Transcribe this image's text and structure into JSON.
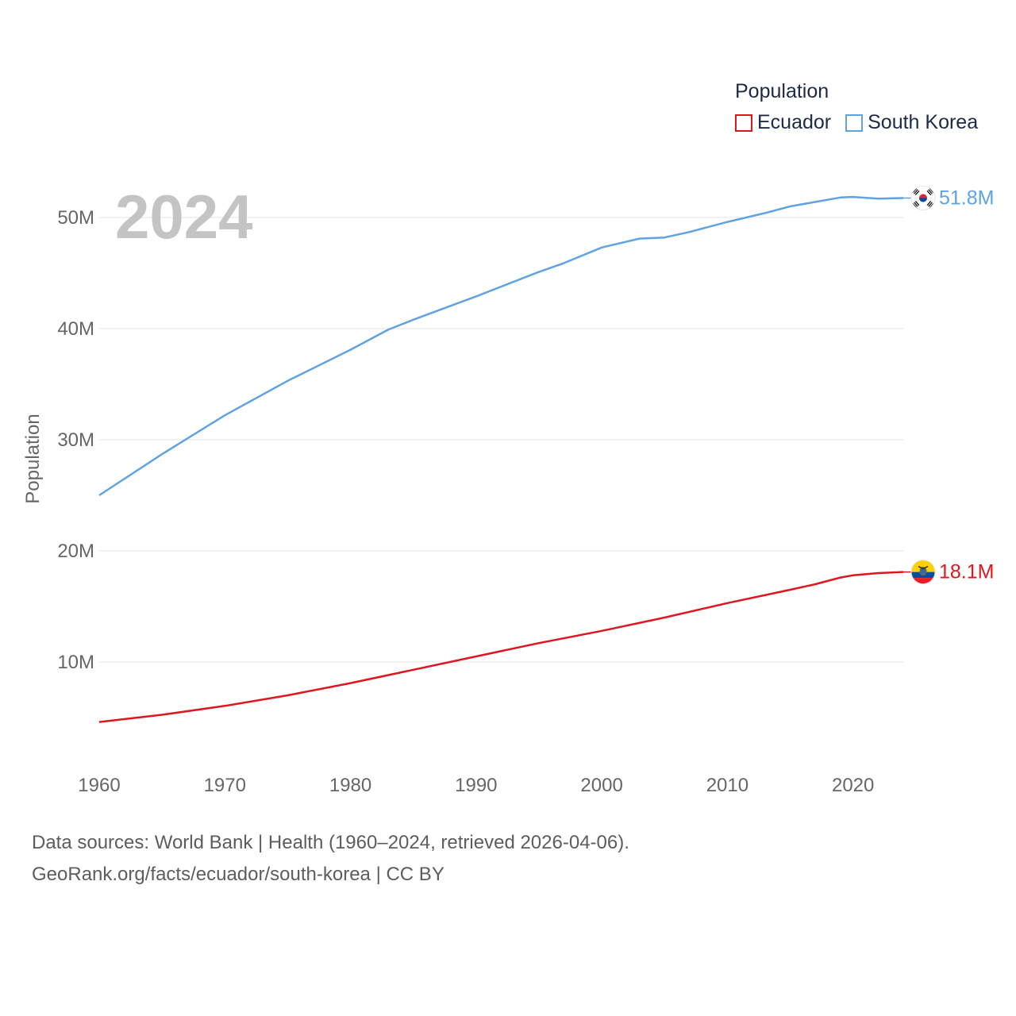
{
  "chart_data": {
    "type": "line",
    "year_watermark": "2024",
    "ylabel": "Population",
    "xlabel": "",
    "ylim": [
      0,
      55000000
    ],
    "xlim": [
      1960,
      2024
    ],
    "y_ticks": [
      10000000,
      20000000,
      30000000,
      40000000,
      50000000
    ],
    "y_tick_labels": [
      "10M",
      "20M",
      "30M",
      "40M",
      "50M"
    ],
    "x_ticks": [
      1960,
      1970,
      1980,
      1990,
      2000,
      2010,
      2020
    ],
    "x_tick_labels": [
      "1960",
      "1970",
      "1980",
      "1990",
      "2000",
      "2010",
      "2020"
    ],
    "grid": true,
    "legend": {
      "title": "Population",
      "position": "top-right"
    },
    "series": [
      {
        "name": "Ecuador",
        "color": "#e0161f",
        "end_label": "18.1M",
        "flag": "ecuador-flag-icon",
        "x": [
          1960,
          1965,
          1970,
          1975,
          1980,
          1985,
          1990,
          1995,
          2000,
          2005,
          2010,
          2015,
          2017,
          2019,
          2020,
          2022,
          2024
        ],
        "values": [
          4600000,
          5250000,
          6050000,
          7000000,
          8100000,
          9300000,
          10500000,
          11700000,
          12800000,
          14000000,
          15300000,
          16500000,
          17000000,
          17600000,
          17800000,
          18000000,
          18100000
        ]
      },
      {
        "name": "South Korea",
        "color": "#5fa3e3",
        "end_label": "51.8M",
        "flag": "south-korea-flag-icon",
        "x": [
          1960,
          1965,
          1970,
          1975,
          1980,
          1983,
          1985,
          1990,
          1995,
          1997,
          2000,
          2003,
          2005,
          2007,
          2010,
          2013,
          2015,
          2017,
          2019,
          2020,
          2022,
          2024
        ],
        "values": [
          25000000,
          28700000,
          32200000,
          35300000,
          38100000,
          39900000,
          40800000,
          42900000,
          45100000,
          45900000,
          47300000,
          48100000,
          48200000,
          48700000,
          49600000,
          50400000,
          51000000,
          51400000,
          51800000,
          51850000,
          51700000,
          51750000
        ]
      }
    ]
  },
  "footer": {
    "sources": "Data sources: World Bank | Health (1960–2024, retrieved 2026-04-06).",
    "attribution": "GeoRank.org/facts/ecuador/south-korea | CC BY"
  }
}
